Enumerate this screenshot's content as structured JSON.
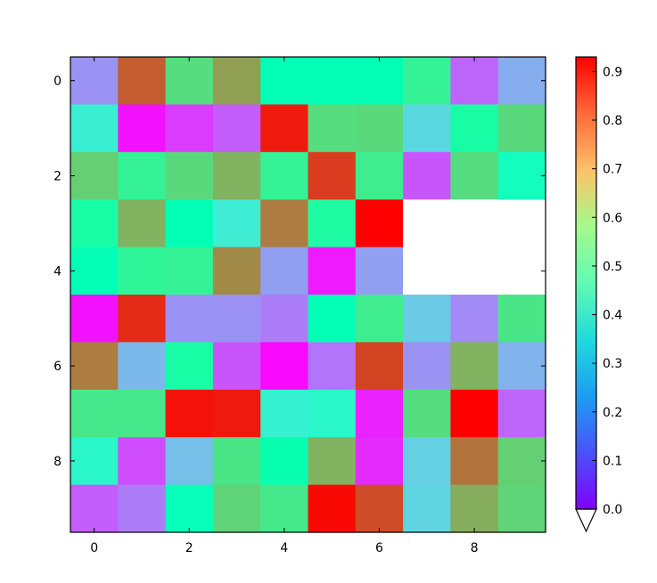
{
  "chart_data": {
    "type": "heatmap",
    "title": "",
    "xlabel": "",
    "ylabel": "",
    "rows": 10,
    "cols": 10,
    "x_ticks": [
      0,
      2,
      4,
      6,
      8
    ],
    "y_ticks": [
      0,
      2,
      4,
      6,
      8
    ],
    "xlim": [
      -0.5,
      9.5
    ],
    "ylim": [
      9.5,
      -0.5
    ],
    "colormap": "rainbow",
    "color_range": [
      0,
      0.93
    ],
    "colorbar": {
      "ticks": [
        "0.0",
        "0.1",
        "0.2",
        "0.3",
        "0.4",
        "0.5",
        "0.6",
        "0.7",
        "0.8",
        "0.9"
      ],
      "extend": "min",
      "location": "right"
    },
    "masked_cells_note": "cells drawn white (masked)",
    "values": [
      [
        0.18,
        0.82,
        0.62,
        0.73,
        0.46,
        0.46,
        0.47,
        0.56,
        0.12,
        0.22
      ],
      [
        0.36,
        0.02,
        0.07,
        0.11,
        0.9,
        0.62,
        0.63,
        0.3,
        0.51,
        0.63
      ],
      [
        0.65,
        0.56,
        0.63,
        0.7,
        0.56,
        0.86,
        0.58,
        0.1,
        0.62,
        0.43
      ],
      [
        0.51,
        0.7,
        0.46,
        0.35,
        0.78,
        0.52,
        0.93,
        null,
        null,
        null
      ],
      [
        0.46,
        0.55,
        0.56,
        0.76,
        0.2,
        0.03,
        0.2,
        null,
        null,
        null
      ],
      [
        0.02,
        0.88,
        0.18,
        0.18,
        0.15,
        0.46,
        0.58,
        0.27,
        0.17,
        0.6
      ],
      [
        0.78,
        0.24,
        0.51,
        0.1,
        0.01,
        0.14,
        0.85,
        0.18,
        0.7,
        0.23
      ],
      [
        0.59,
        0.59,
        0.91,
        0.9,
        0.37,
        0.39,
        0.04,
        0.62,
        0.94,
        0.12
      ],
      [
        0.39,
        0.09,
        0.25,
        0.6,
        0.48,
        0.7,
        0.05,
        0.28,
        0.79,
        0.65
      ],
      [
        0.11,
        0.15,
        0.45,
        0.64,
        0.59,
        0.92,
        0.84,
        0.29,
        0.71,
        0.64
      ]
    ]
  }
}
